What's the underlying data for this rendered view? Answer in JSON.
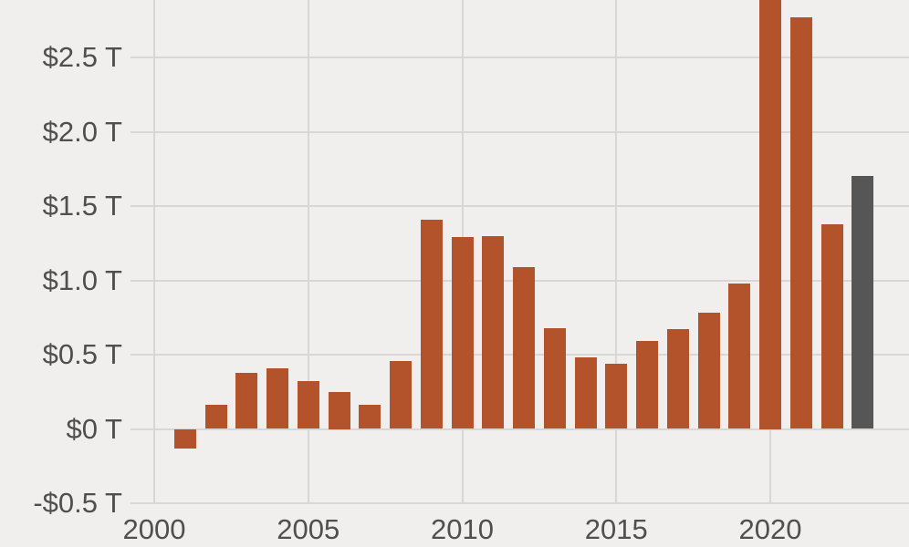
{
  "chart_data": {
    "type": "bar",
    "title": "",
    "unit": "trillions of USD",
    "xlabel": "",
    "ylabel": "",
    "categories": [
      2001,
      2002,
      2003,
      2004,
      2005,
      2006,
      2007,
      2008,
      2009,
      2010,
      2011,
      2012,
      2013,
      2014,
      2015,
      2016,
      2017,
      2018,
      2019,
      2020,
      2021,
      2022,
      2023
    ],
    "values": [
      -0.13,
      0.16,
      0.38,
      0.41,
      0.32,
      0.25,
      0.16,
      0.46,
      1.41,
      1.29,
      1.3,
      1.09,
      0.68,
      0.48,
      0.44,
      0.59,
      0.67,
      0.78,
      0.98,
      3.13,
      2.77,
      1.38,
      1.7
    ],
    "highlight_category": 2023,
    "clipped_categories": [
      2020
    ],
    "y_ticks": [
      {
        "value": 2.5,
        "label": "$2.5 T"
      },
      {
        "value": 2.0,
        "label": "$2.0 T"
      },
      {
        "value": 1.5,
        "label": "$1.5 T"
      },
      {
        "value": 1.0,
        "label": "$1.0 T"
      },
      {
        "value": 0.5,
        "label": "$0.5 T"
      },
      {
        "value": 0,
        "label": "$0 T"
      },
      {
        "value": -0.5,
        "label": "-$0.5 T"
      }
    ],
    "x_ticks": [
      {
        "value": 2000,
        "label": "2000"
      },
      {
        "value": 2005,
        "label": "2005"
      },
      {
        "value": 2010,
        "label": "2010"
      },
      {
        "value": 2015,
        "label": "2015"
      },
      {
        "value": 2020,
        "label": "2020"
      }
    ],
    "ylim_visible": [
      -0.5,
      2.89
    ],
    "xlim_visible": [
      1999.2,
      2024.5
    ],
    "grid": true,
    "legend": false,
    "colors": {
      "bar": "#b2532c",
      "highlight_bar": "#565656",
      "background": "#f0efed",
      "gridline": "#d8d7d5",
      "axis_text": "#4f4f4f"
    }
  }
}
